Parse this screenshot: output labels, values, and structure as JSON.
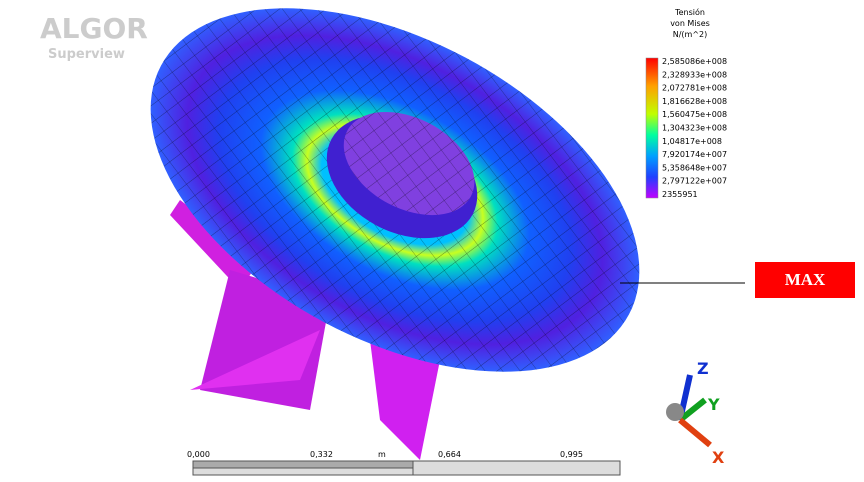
{
  "logo": {
    "brand": "ALGOR",
    "product": "Superview"
  },
  "legend": {
    "title": "Tensión",
    "subtitle": "von Mises",
    "unit": "N/(m^2)",
    "labels": [
      "2,585086e+008",
      "2,328933e+008",
      "2,072781e+008",
      "1,816628e+008",
      "1,560475e+008",
      "1,304323e+008",
      "1,04817e+008",
      "7,920174e+007",
      "5,358648e+007",
      "2,797122e+007",
      "2355951"
    ]
  },
  "scale_bar": {
    "labels": [
      "0,000",
      "0,332",
      "m",
      "0,664",
      "0,995"
    ]
  },
  "axes": {
    "z": "Z",
    "y": "Y",
    "x": "X"
  },
  "callout": "MAX"
}
